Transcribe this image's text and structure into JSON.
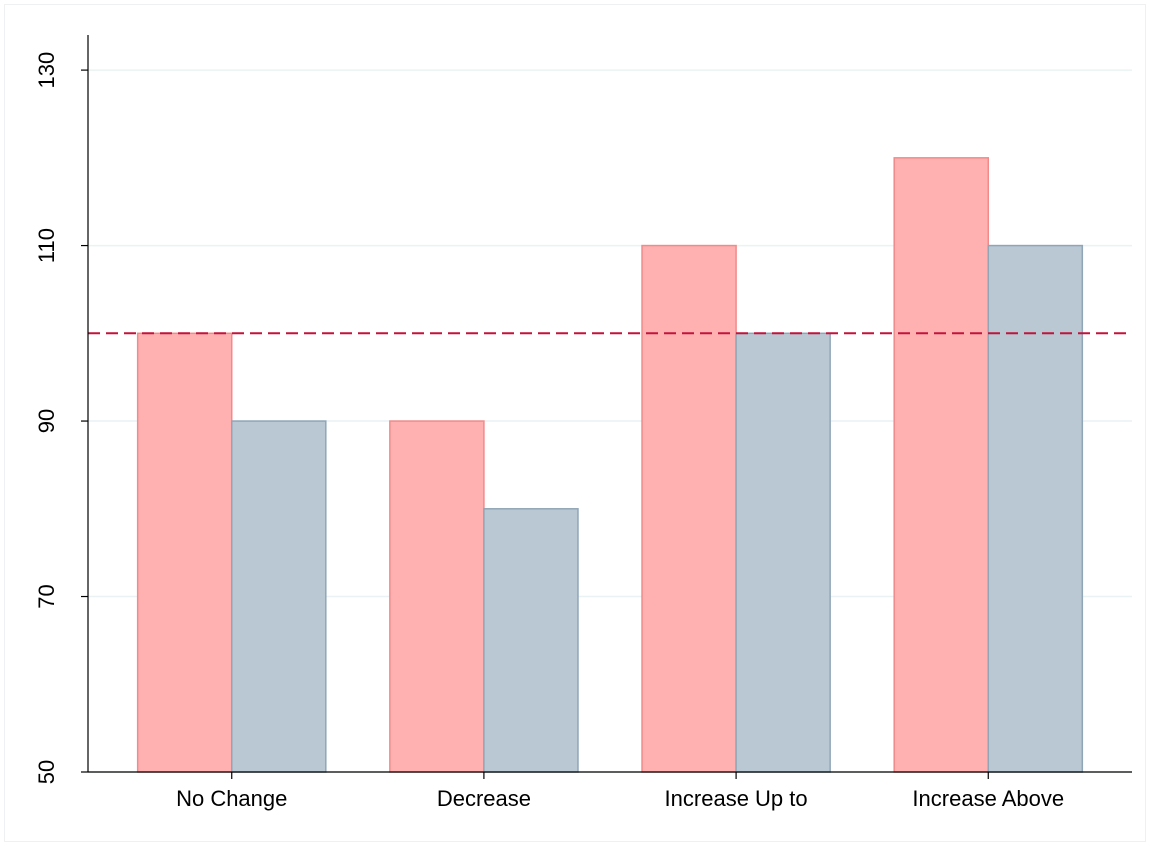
{
  "chart_data": {
    "type": "bar",
    "categories": [
      "No Change",
      "Decrease",
      "Increase Up to",
      "Increase Above"
    ],
    "series": [
      {
        "color": "#ffb1b1",
        "values": [
          100,
          90,
          110,
          120
        ]
      },
      {
        "color": "#b9c8d3",
        "values": [
          90,
          80,
          100,
          110
        ]
      }
    ],
    "ylim": [
      50,
      134
    ],
    "yticks": [
      50,
      70,
      90,
      110,
      130
    ],
    "grid": true,
    "reference_line": {
      "value": 100,
      "color": "#c0143c"
    }
  }
}
